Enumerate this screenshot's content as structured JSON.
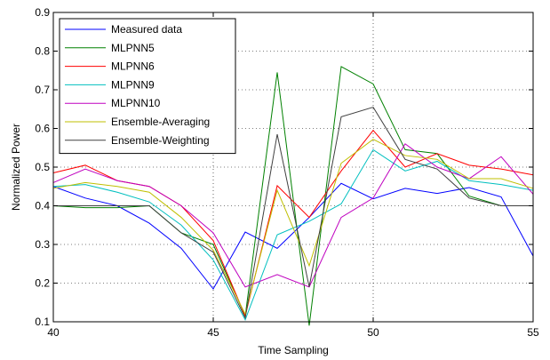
{
  "chart_data": {
    "type": "line",
    "xlabel": "Time Sampling",
    "ylabel": "Normalized Power",
    "xlim": [
      40,
      55
    ],
    "ylim": [
      0.1,
      0.9
    ],
    "xticks": [
      "40",
      "45",
      "50",
      "55"
    ],
    "yticks": [
      "0.1",
      "0.2",
      "0.3",
      "0.4",
      "0.5",
      "0.6",
      "0.7",
      "0.8",
      "0.9"
    ],
    "grid": true,
    "legend_position": "top-left",
    "x": [
      40,
      41,
      42,
      43,
      44,
      45,
      46,
      47,
      48,
      49,
      50,
      51,
      52,
      53,
      54,
      55
    ],
    "series": [
      {
        "name": "Measured data",
        "color": "#0000ff",
        "values": [
          0.45,
          0.42,
          0.4,
          0.355,
          0.29,
          0.185,
          0.332,
          0.29,
          0.37,
          0.458,
          0.418,
          0.445,
          0.432,
          0.447,
          0.423,
          0.27
        ]
      },
      {
        "name": "MLPNN5",
        "color": "#008000",
        "values": [
          0.4,
          0.395,
          0.395,
          0.4,
          0.33,
          0.3,
          0.115,
          0.745,
          0.09,
          0.76,
          0.715,
          0.545,
          0.535,
          0.425,
          0.4,
          0.4
        ]
      },
      {
        "name": "MLPNN6",
        "color": "#ff0000",
        "values": [
          0.485,
          0.505,
          0.465,
          0.45,
          0.4,
          0.31,
          0.115,
          0.452,
          0.37,
          0.49,
          0.595,
          0.5,
          0.535,
          0.505,
          0.495,
          0.48
        ]
      },
      {
        "name": "MLPNN9",
        "color": "#00bfbf",
        "values": [
          0.45,
          0.455,
          0.435,
          0.41,
          0.35,
          0.26,
          0.105,
          0.325,
          0.36,
          0.405,
          0.545,
          0.49,
          0.515,
          0.465,
          0.455,
          0.44
        ]
      },
      {
        "name": "MLPNN10",
        "color": "#bf00bf",
        "values": [
          0.46,
          0.495,
          0.465,
          0.45,
          0.4,
          0.33,
          0.19,
          0.222,
          0.19,
          0.37,
          0.42,
          0.56,
          0.5,
          0.47,
          0.527,
          0.43
        ]
      },
      {
        "name": "Ensemble-Averaging",
        "color": "#bfbf00",
        "values": [
          0.445,
          0.46,
          0.45,
          0.435,
          0.37,
          0.285,
          0.12,
          0.44,
          0.245,
          0.51,
          0.572,
          0.53,
          0.52,
          0.47,
          0.47,
          0.445
        ]
      },
      {
        "name": "Ensemble-Weighting",
        "color": "#404040",
        "values": [
          0.4,
          0.4,
          0.4,
          0.4,
          0.33,
          0.28,
          0.11,
          0.585,
          0.19,
          0.63,
          0.655,
          0.52,
          0.495,
          0.42,
          0.4,
          0.4
        ]
      }
    ]
  }
}
